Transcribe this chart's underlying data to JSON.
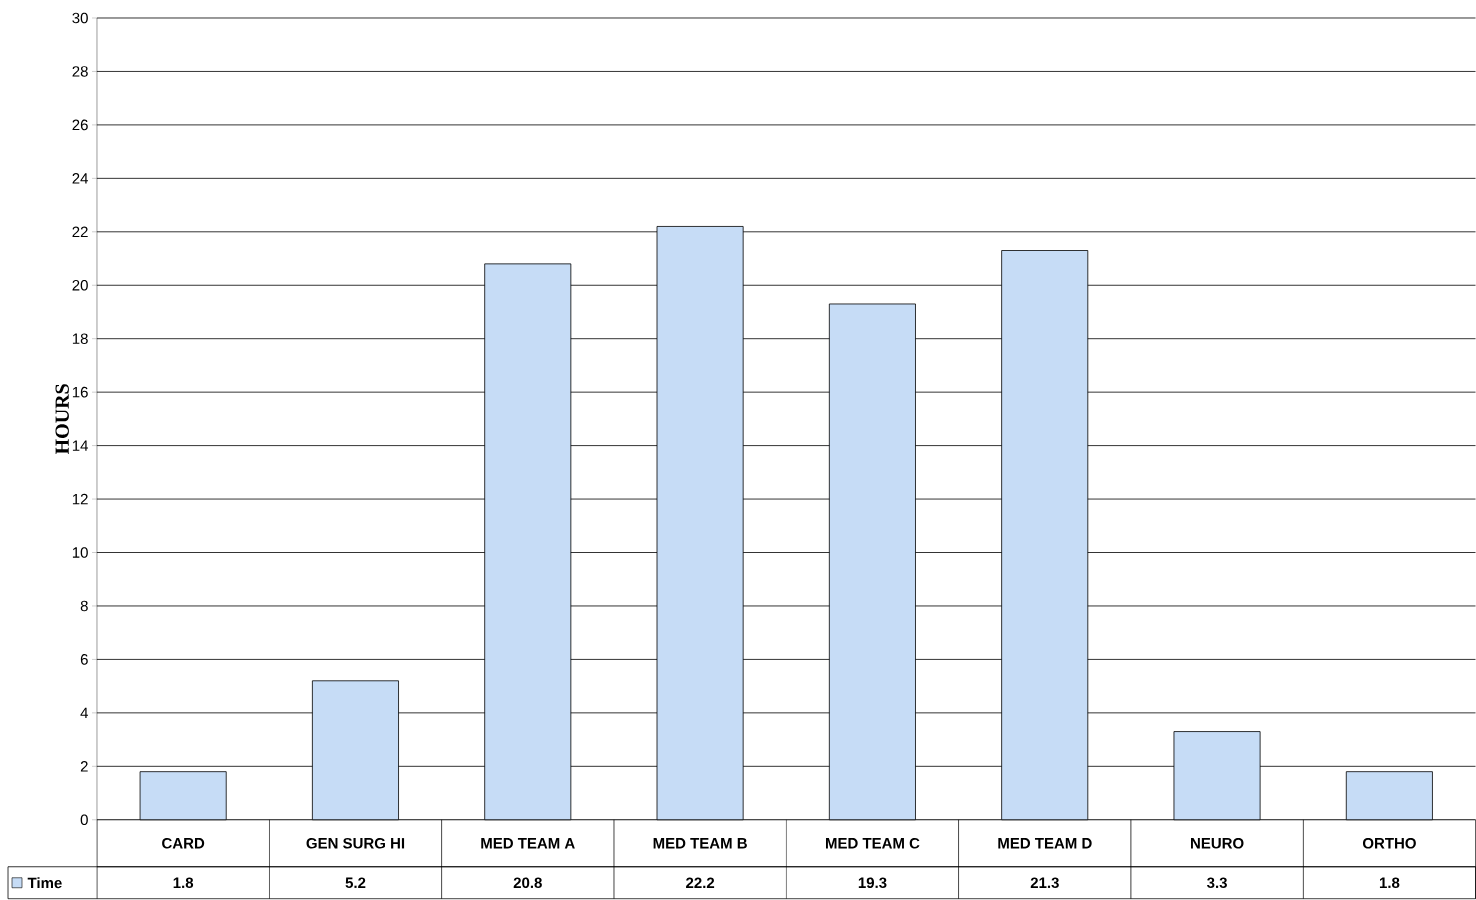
{
  "chart_data": {
    "type": "bar",
    "ylabel": "HOURS",
    "categories": [
      "CARD",
      "GEN SURG HI",
      "MED TEAM A",
      "MED TEAM B",
      "MED TEAM C",
      "MED TEAM D",
      "NEURO",
      "ORTHO"
    ],
    "series": [
      {
        "name": "Time",
        "color": "#c6dcf6",
        "values": [
          1.8,
          5.2,
          20.8,
          22.2,
          19.3,
          21.3,
          3.3,
          1.8
        ]
      }
    ],
    "ylim": [
      0,
      30
    ],
    "yticks": [
      0,
      2,
      4,
      6,
      8,
      10,
      12,
      14,
      16,
      18,
      20,
      22,
      24,
      26,
      28,
      30
    ],
    "grid": "y",
    "data_labels": true,
    "legend": "bottom left"
  }
}
